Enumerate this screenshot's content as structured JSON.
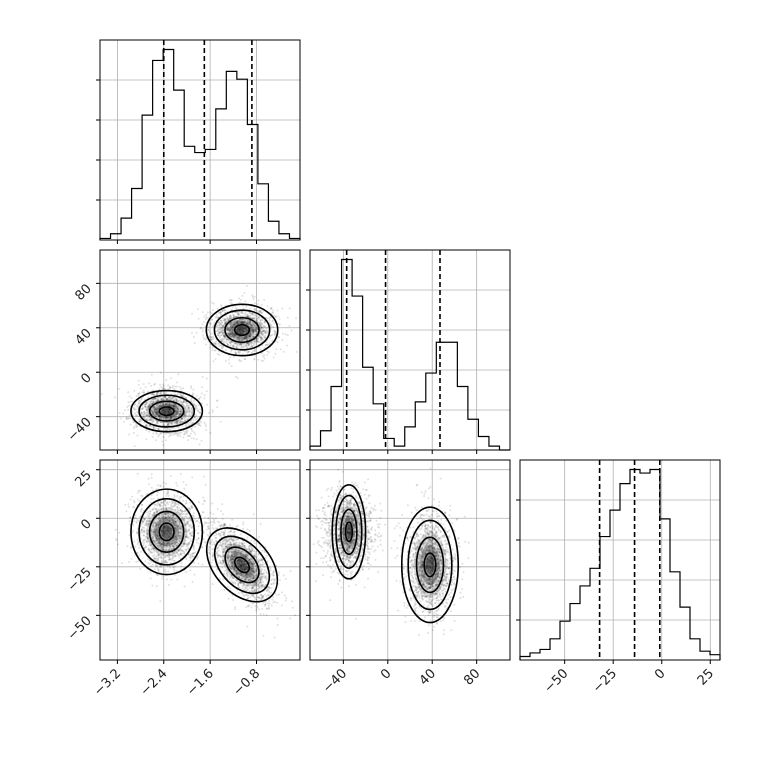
{
  "chart_data": {
    "type": "corner",
    "grid": true,
    "params": [
      {
        "key": "a",
        "range": [
          -3.5,
          -0.05
        ],
        "ticks": [
          -3.2,
          -2.4,
          -1.6,
          -0.8
        ],
        "tick_labels": [
          "−3.2",
          "−2.4",
          "−1.6",
          "−0.8"
        ],
        "quantiles": [
          -2.4,
          -1.7,
          -0.88
        ],
        "hist_counts": [
          1,
          4,
          14,
          33,
          80,
          115,
          122,
          96,
          60,
          56,
          58,
          84,
          108,
          103,
          74,
          36,
          12,
          4,
          1
        ]
      },
      {
        "key": "b",
        "range": [
          -70,
          110
        ],
        "ticks": [
          -40,
          0,
          40,
          80
        ],
        "tick_labels": [
          "−40",
          "0",
          "40",
          "80"
        ],
        "quantiles": [
          -37,
          -2,
          47
        ],
        "hist_counts": [
          2,
          10,
          33,
          99,
          80,
          43,
          24,
          6,
          2,
          12,
          25,
          40,
          56,
          56,
          33,
          16,
          7,
          2,
          0
        ]
      },
      {
        "key": "c",
        "range": [
          -73,
          30
        ],
        "ticks": [
          -50,
          -25,
          0,
          25
        ],
        "tick_labels": [
          "−50",
          "−25",
          "0",
          "25"
        ],
        "quantiles": [
          -32,
          -14,
          -1
        ],
        "hist_counts": [
          2,
          4,
          6,
          12,
          22,
          32,
          42,
          52,
          70,
          85,
          100,
          108,
          106,
          108,
          80,
          50,
          30,
          12,
          5,
          3
        ]
      }
    ],
    "modes": [
      {
        "a": -2.35,
        "b": -35,
        "c": -7
      },
      {
        "a": -1.05,
        "b": 38,
        "c": -24
      }
    ],
    "panels_2d": [
      {
        "x": "a",
        "y": "b"
      },
      {
        "x": "a",
        "y": "c"
      },
      {
        "x": "b",
        "y": "c"
      }
    ]
  }
}
